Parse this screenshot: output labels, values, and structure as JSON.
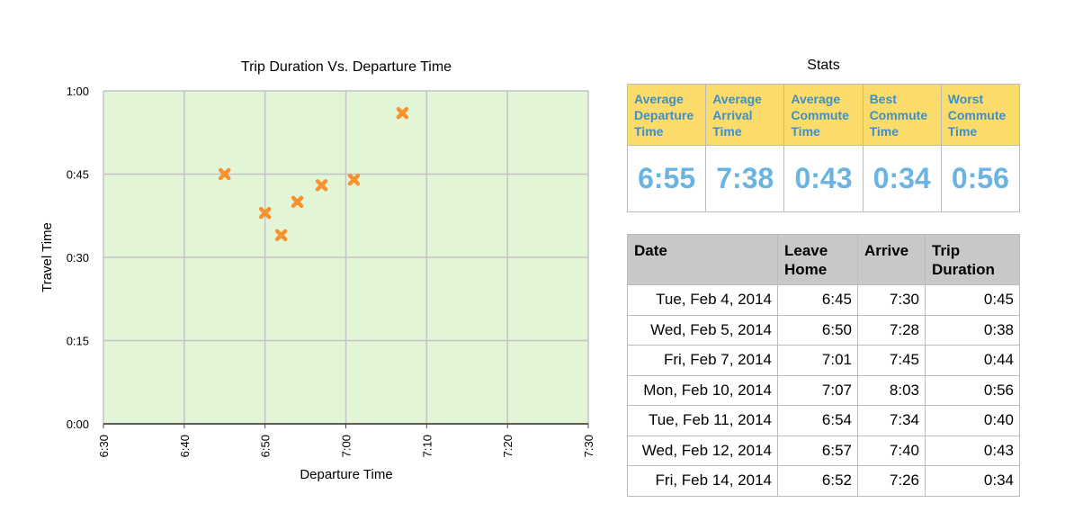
{
  "chart_data": {
    "type": "scatter",
    "title": "Trip Duration Vs. Departure Time",
    "xlabel": "Departure Time",
    "ylabel": "Travel Time",
    "x_ticks": [
      "6:30",
      "6:40",
      "6:50",
      "7:00",
      "7:10",
      "7:20",
      "7:30"
    ],
    "y_ticks": [
      "0:00",
      "0:15",
      "0:30",
      "0:45",
      "1:00"
    ],
    "xlim": [
      "6:30",
      "7:30"
    ],
    "ylim": [
      "0:00",
      "1:00"
    ],
    "grid": true,
    "marker": "x",
    "colors": {
      "plot_bg": "#e2f5d6",
      "grid": "#c4c4c4",
      "marker": "#f7922e"
    },
    "points": [
      {
        "x": "6:45",
        "y": "0:45"
      },
      {
        "x": "6:50",
        "y": "0:38"
      },
      {
        "x": "7:01",
        "y": "0:44"
      },
      {
        "x": "7:07",
        "y": "0:56"
      },
      {
        "x": "6:54",
        "y": "0:40"
      },
      {
        "x": "6:57",
        "y": "0:43"
      },
      {
        "x": "6:52",
        "y": "0:34"
      }
    ]
  },
  "stats": {
    "title": "Stats",
    "headers": [
      [
        "Average",
        "Departure",
        "Time"
      ],
      [
        "Average",
        "Arrival",
        "Time"
      ],
      [
        "Average",
        "Commute",
        "Time"
      ],
      [
        "Best",
        "Commute",
        "Time"
      ],
      [
        "Worst",
        "Commute",
        "Time"
      ]
    ],
    "values": [
      "6:55",
      "7:38",
      "0:43",
      "0:34",
      "0:56"
    ],
    "colors": {
      "header_bg": "#fbdb6a",
      "header_text": "#3e8fc8",
      "value_text": "#6ab4e2"
    }
  },
  "trips": {
    "headers": [
      [
        "Date"
      ],
      [
        "Leave",
        "Home"
      ],
      [
        "Arrive"
      ],
      [
        "Trip",
        "Duration"
      ]
    ],
    "rows": [
      [
        "Tue, Feb 4, 2014",
        "6:45",
        "7:30",
        "0:45"
      ],
      [
        "Wed, Feb 5, 2014",
        "6:50",
        "7:28",
        "0:38"
      ],
      [
        "Fri, Feb 7, 2014",
        "7:01",
        "7:45",
        "0:44"
      ],
      [
        "Mon, Feb 10, 2014",
        "7:07",
        "8:03",
        "0:56"
      ],
      [
        "Tue, Feb 11, 2014",
        "6:54",
        "7:34",
        "0:40"
      ],
      [
        "Wed, Feb 12, 2014",
        "6:57",
        "7:40",
        "0:43"
      ],
      [
        "Fri, Feb 14, 2014",
        "6:52",
        "7:26",
        "0:34"
      ]
    ],
    "colors": {
      "header_bg": "#c8c8c8"
    }
  }
}
